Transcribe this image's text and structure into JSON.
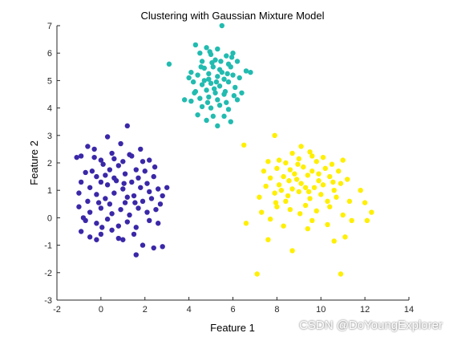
{
  "chart_data": {
    "type": "scatter",
    "title": "Clustering with Gaussian Mixture Model",
    "xlabel": "Feature 1",
    "ylabel": "Feature 2",
    "xlim": [
      -2,
      14
    ],
    "ylim": [
      -3,
      7
    ],
    "xticks": [
      "-2",
      "0",
      "2",
      "4",
      "6",
      "8",
      "10",
      "12",
      "14"
    ],
    "yticks": [
      "-3",
      "-2",
      "-1",
      "0",
      "1",
      "2",
      "3",
      "4",
      "5",
      "6",
      "7"
    ],
    "grid": false,
    "legend": false,
    "series": [
      {
        "color": "#3a28a8",
        "points": [
          [
            -1.1,
            2.2
          ],
          [
            -0.9,
            2.25
          ],
          [
            -0.6,
            2.6
          ],
          [
            -0.3,
            2.2
          ],
          [
            0.3,
            2.95
          ],
          [
            1.2,
            3.35
          ],
          [
            0.9,
            2.7
          ],
          [
            1.3,
            2.3
          ],
          [
            1.8,
            2.5
          ],
          [
            0.5,
            2.35
          ],
          [
            0,
            2.1
          ],
          [
            -0.4,
            1.7
          ],
          [
            -0.7,
            1.65
          ],
          [
            -0.2,
            1.5
          ],
          [
            0.4,
            1.75
          ],
          [
            0.8,
            1.9
          ],
          [
            1.1,
            1.6
          ],
          [
            1.6,
            1.75
          ],
          [
            2,
            1.7
          ],
          [
            2.2,
            2.1
          ],
          [
            2.4,
            1.5
          ],
          [
            -0.9,
            1.3
          ],
          [
            -0.5,
            1.1
          ],
          [
            0,
            1.3
          ],
          [
            0.3,
            1.2
          ],
          [
            0.7,
            1.35
          ],
          [
            1,
            1.05
          ],
          [
            1.4,
            1.3
          ],
          [
            1.8,
            1.1
          ],
          [
            2.1,
            1.25
          ],
          [
            2.6,
            1.05
          ],
          [
            3,
            1.1
          ],
          [
            -1,
            0.9
          ],
          [
            -0.6,
            0.6
          ],
          [
            -0.2,
            0.85
          ],
          [
            0.2,
            0.7
          ],
          [
            0.6,
            0.9
          ],
          [
            1.1,
            0.55
          ],
          [
            1.5,
            0.8
          ],
          [
            1.9,
            0.6
          ],
          [
            2.3,
            0.7
          ],
          [
            2.8,
            0.8
          ],
          [
            -1,
            0.4
          ],
          [
            -0.5,
            0.2
          ],
          [
            0,
            0.35
          ],
          [
            0.5,
            0.15
          ],
          [
            0.9,
            0.3
          ],
          [
            1.3,
            0.1
          ],
          [
            1.7,
            0.35
          ],
          [
            2.1,
            0.2
          ],
          [
            2.5,
            0.3
          ],
          [
            -0.7,
            -0.1
          ],
          [
            -0.2,
            -0.2
          ],
          [
            0.3,
            -0.05
          ],
          [
            0.8,
            -0.3
          ],
          [
            1.2,
            -0.15
          ],
          [
            1.6,
            -0.35
          ],
          [
            2.2,
            -0.1
          ],
          [
            2.6,
            -0.2
          ],
          [
            -0.9,
            -0.5
          ],
          [
            -0.5,
            -0.7
          ],
          [
            0,
            -0.6
          ],
          [
            0.5,
            -0.45
          ],
          [
            1,
            -0.8
          ],
          [
            1.5,
            -0.6
          ],
          [
            1.9,
            -1
          ],
          [
            2.4,
            -1.1
          ],
          [
            2.8,
            -1.05
          ],
          [
            1.6,
            -1.35
          ],
          [
            -0.2,
            -0.8
          ],
          [
            0.2,
            1.55
          ],
          [
            0.6,
            1.45
          ],
          [
            1,
            2.05
          ],
          [
            1.4,
            2.25
          ],
          [
            -0.1,
            0.55
          ],
          [
            0.4,
            0.5
          ],
          [
            1.2,
            0.75
          ],
          [
            1.7,
            1.45
          ],
          [
            2.2,
            0.95
          ],
          [
            0.8,
            -0.75
          ],
          [
            0.1,
            1.95
          ],
          [
            1.9,
            2.05
          ],
          [
            -0.3,
            2.5
          ],
          [
            2.7,
            0.5
          ],
          [
            0.6,
            2.15
          ],
          [
            -0.8,
            0.0
          ],
          [
            0.05,
            -0.35
          ],
          [
            1.55,
            0.55
          ],
          [
            2.45,
            1.85
          ],
          [
            1.05,
            1.25
          ]
        ]
      },
      {
        "color": "#22bbb0",
        "points": [
          [
            5.5,
            7
          ],
          [
            4.3,
            6.3
          ],
          [
            4.8,
            6.2
          ],
          [
            5.3,
            6.15
          ],
          [
            4.5,
            6
          ],
          [
            5,
            5.95
          ],
          [
            5.7,
            5.9
          ],
          [
            6,
            6
          ],
          [
            3.1,
            5.6
          ],
          [
            4.6,
            5.7
          ],
          [
            5.2,
            5.75
          ],
          [
            5.8,
            5.6
          ],
          [
            6.2,
            5.7
          ],
          [
            4.1,
            5.3
          ],
          [
            4.7,
            5.45
          ],
          [
            5.1,
            5.5
          ],
          [
            5.4,
            5.4
          ],
          [
            5.9,
            5.5
          ],
          [
            6.6,
            5.35
          ],
          [
            6.8,
            5.3
          ],
          [
            4,
            5.1
          ],
          [
            4.4,
            5.2
          ],
          [
            4.9,
            5.25
          ],
          [
            5.3,
            5.15
          ],
          [
            5.6,
            5.05
          ],
          [
            6,
            5.2
          ],
          [
            6.3,
            5.1
          ],
          [
            4.2,
            4.95
          ],
          [
            4.6,
            4.85
          ],
          [
            5,
            4.9
          ],
          [
            5.4,
            4.8
          ],
          [
            5.8,
            4.95
          ],
          [
            6.1,
            4.75
          ],
          [
            4.3,
            4.6
          ],
          [
            4.8,
            4.65
          ],
          [
            5.2,
            4.55
          ],
          [
            5.6,
            4.5
          ],
          [
            6.4,
            4.55
          ],
          [
            4.5,
            4.35
          ],
          [
            4.9,
            4.4
          ],
          [
            5.3,
            4.3
          ],
          [
            5.7,
            4.2
          ],
          [
            6.2,
            4.3
          ],
          [
            3.8,
            4.3
          ],
          [
            4.1,
            4.25
          ],
          [
            4.6,
            4.05
          ],
          [
            5,
            4
          ],
          [
            5.4,
            4.1
          ],
          [
            5.8,
            3.95
          ],
          [
            4.4,
            3.75
          ],
          [
            5.1,
            3.7
          ],
          [
            5.6,
            3.7
          ],
          [
            4.8,
            3.55
          ],
          [
            5.3,
            3.35
          ],
          [
            5.9,
            3.5
          ],
          [
            4.9,
            5.05
          ],
          [
            5.5,
            5.3
          ],
          [
            5.15,
            4.7
          ],
          [
            4.7,
            5.0
          ],
          [
            5.95,
            5.85
          ],
          [
            4.55,
            5.5
          ],
          [
            5.65,
            4.6
          ],
          [
            5.05,
            5.65
          ],
          [
            4.25,
            4.55
          ],
          [
            5.75,
            5.25
          ],
          [
            5.25,
            4.95
          ],
          [
            4.85,
            4.2
          ],
          [
            6.05,
            4.45
          ],
          [
            5.45,
            5.7
          ],
          [
            4.95,
            6.05
          ]
        ]
      },
      {
        "color": "#ffef00",
        "points": [
          [
            7.9,
            3
          ],
          [
            6.5,
            2.65
          ],
          [
            9.1,
            2.6
          ],
          [
            8.7,
            2.35
          ],
          [
            9.5,
            2.4
          ],
          [
            10.1,
            2.2
          ],
          [
            7.6,
            2.05
          ],
          [
            8.1,
            2.1
          ],
          [
            8.4,
            2
          ],
          [
            9,
            2.15
          ],
          [
            9.8,
            2.05
          ],
          [
            10.5,
            1.95
          ],
          [
            11,
            2.1
          ],
          [
            7.4,
            1.7
          ],
          [
            8,
            1.8
          ],
          [
            8.6,
            1.75
          ],
          [
            9.2,
            1.85
          ],
          [
            9.6,
            1.7
          ],
          [
            10.2,
            1.8
          ],
          [
            10.8,
            1.7
          ],
          [
            7.7,
            1.45
          ],
          [
            8.3,
            1.5
          ],
          [
            8.9,
            1.4
          ],
          [
            9.4,
            1.55
          ],
          [
            9.9,
            1.35
          ],
          [
            10.4,
            1.5
          ],
          [
            11.2,
            1.4
          ],
          [
            7.5,
            1.15
          ],
          [
            8.1,
            1.2
          ],
          [
            8.7,
            1.05
          ],
          [
            9.1,
            1.25
          ],
          [
            9.7,
            1.1
          ],
          [
            10.1,
            1.2
          ],
          [
            10.6,
            1
          ],
          [
            11.8,
            1
          ],
          [
            7.2,
            0.75
          ],
          [
            7.9,
            0.9
          ],
          [
            8.5,
            0.8
          ],
          [
            9,
            0.95
          ],
          [
            9.5,
            0.7
          ],
          [
            10,
            0.85
          ],
          [
            10.7,
            0.75
          ],
          [
            11.3,
            0.6
          ],
          [
            12,
            0.55
          ],
          [
            7.3,
            0.2
          ],
          [
            8,
            0.4
          ],
          [
            8.6,
            0.3
          ],
          [
            9.3,
            0.45
          ],
          [
            9.8,
            0.25
          ],
          [
            10.4,
            0.4
          ],
          [
            11,
            0.1
          ],
          [
            12.3,
            0.2
          ],
          [
            12.1,
            -0.1
          ],
          [
            6.6,
            -0.2
          ],
          [
            7.7,
            -0.05
          ],
          [
            8.3,
            -0.3
          ],
          [
            9.6,
            -0.1
          ],
          [
            10.3,
            -0.25
          ],
          [
            11.4,
            -0.1
          ],
          [
            7.6,
            -0.8
          ],
          [
            10.6,
            -0.85
          ],
          [
            9.4,
            -0.4
          ],
          [
            8.7,
            -1.2
          ],
          [
            7.1,
            -2.05
          ],
          [
            10.9,
            -2.05
          ],
          [
            11.1,
            -0.7
          ],
          [
            8.8,
            1.6
          ],
          [
            9.3,
            1.1
          ],
          [
            8.4,
            0.6
          ],
          [
            9.9,
            1.6
          ],
          [
            10.3,
            0.6
          ],
          [
            8.2,
            1.0
          ],
          [
            9.6,
            2.25
          ],
          [
            10.9,
            1.25
          ],
          [
            7.95,
            0.55
          ],
          [
            9.05,
            0.15
          ],
          [
            8.95,
            1.95
          ],
          [
            9.45,
            0.95
          ],
          [
            10.55,
            1.3
          ],
          [
            8.55,
            1.35
          ]
        ]
      }
    ]
  },
  "watermark": "CSDN @DoYoungExplorer"
}
